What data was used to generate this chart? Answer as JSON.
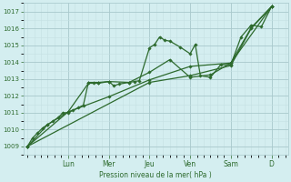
{
  "background_color": "#d4eef0",
  "grid_color_major": "#a8c8cc",
  "grid_color_minor": "#c4e0e3",
  "line_color": "#2d6a2d",
  "marker_color": "#2d6a2d",
  "xlabel": "Pression niveau de la mer( hPa )",
  "ylim": [
    1008.5,
    1017.5
  ],
  "yticks": [
    1009,
    1010,
    1011,
    1012,
    1013,
    1014,
    1015,
    1016,
    1017
  ],
  "day_labels": [
    "Lun",
    "Mer",
    "Jeu",
    "Ven",
    "Sam",
    "D"
  ],
  "day_positions": [
    2,
    4,
    6,
    8,
    10,
    12
  ],
  "xlim": [
    -0.2,
    12.8
  ],
  "series": [
    [
      0,
      1009.0,
      0.25,
      1009.5,
      0.5,
      1009.8,
      0.75,
      1010.1,
      1.0,
      1010.3,
      1.25,
      1010.5,
      1.5,
      1010.7,
      1.75,
      1011.0,
      2.0,
      1011.0,
      2.25,
      1011.15,
      2.5,
      1011.3,
      2.75,
      1011.45,
      3.0,
      1012.8,
      3.25,
      1012.8,
      3.5,
      1012.8,
      4.0,
      1012.85,
      4.25,
      1012.6,
      4.5,
      1012.7,
      5.0,
      1012.8,
      5.25,
      1012.85,
      5.5,
      1012.9,
      6.0,
      1014.85,
      6.25,
      1015.05,
      6.5,
      1015.5,
      6.75,
      1015.3,
      7.0,
      1015.25,
      7.5,
      1014.9,
      8.0,
      1014.5,
      8.25,
      1015.05,
      8.5,
      1013.2,
      9.0,
      1013.1,
      9.5,
      1013.85,
      10.0,
      1013.85,
      10.5,
      1015.5,
      11.0,
      1016.2,
      11.5,
      1016.1,
      12.0,
      1017.3
    ],
    [
      0,
      1009.0,
      1.0,
      1010.3,
      2.0,
      1011.05,
      3.0,
      1012.75,
      3.5,
      1012.75,
      4.0,
      1012.85,
      5.0,
      1012.8,
      6.0,
      1013.4,
      7.0,
      1014.15,
      8.0,
      1013.1,
      9.0,
      1013.25,
      10.0,
      1013.95,
      11.0,
      1016.05,
      12.0,
      1017.3
    ],
    [
      0,
      1009.0,
      2.0,
      1011.05,
      4.0,
      1011.95,
      6.0,
      1012.95,
      8.0,
      1013.75,
      10.0,
      1013.95,
      12.0,
      1017.3
    ],
    [
      0,
      1009.0,
      6.0,
      1012.8,
      8.0,
      1013.2,
      10.0,
      1013.8,
      11.0,
      1016.0,
      12.0,
      1017.3
    ]
  ]
}
